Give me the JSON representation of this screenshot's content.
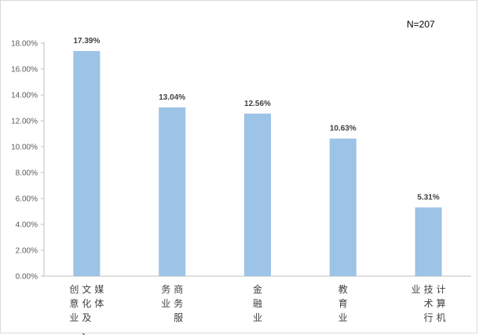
{
  "chart_data": {
    "type": "bar",
    "title": "",
    "xlabel": "",
    "ylabel": "",
    "categories": [
      "文化及媒体创意业",
      "商务服务业",
      "金融业",
      "教育业",
      "计算机技术行业"
    ],
    "category_columns": [
      [
        "媒体",
        "文化及、",
        "创意业"
      ],
      [
        "商务服",
        "务业"
      ],
      [
        "金融业"
      ],
      [
        "教育业"
      ],
      [
        "计算机",
        "技术行",
        "业"
      ]
    ],
    "values": [
      17.39,
      13.04,
      12.56,
      10.63,
      5.31
    ],
    "data_labels": [
      "17.39%",
      "13.04%",
      "12.56%",
      "10.63%",
      "5.31%"
    ],
    "ylim": [
      0,
      18
    ],
    "y_ticks": [
      0,
      2,
      4,
      6,
      8,
      10,
      12,
      14,
      16,
      18
    ],
    "y_tick_labels": [
      "0.00%",
      "2.00%",
      "4.00%",
      "6.00%",
      "8.00%",
      "10.00%",
      "12.00%",
      "14.00%",
      "16.00%",
      "18.00%"
    ],
    "annotation": "N=207",
    "grid": false,
    "legend": "none",
    "bar_color": "#9dc3e6"
  }
}
